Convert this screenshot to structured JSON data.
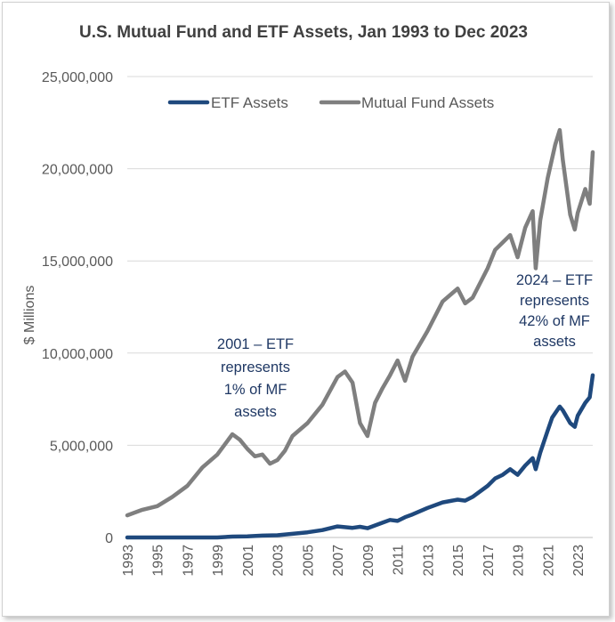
{
  "chart_data": {
    "type": "line",
    "title": "U.S. Mutual Fund and ETF Assets, Jan 1993 to Dec 2023",
    "xlabel": "",
    "ylabel": "$ Millions",
    "ylim": [
      0,
      25000000
    ],
    "xlim": [
      1993,
      2024
    ],
    "yticks": [
      "0",
      "5,000,000",
      "10,000,000",
      "15,000,000",
      "20,000,000",
      "25,000,000"
    ],
    "xticks": [
      "1993",
      "1995",
      "1997",
      "1999",
      "2001",
      "2003",
      "2005",
      "2007",
      "2009",
      "2011",
      "2013",
      "2015",
      "2017",
      "2019",
      "2021",
      "2023"
    ],
    "grid": "horizontal",
    "legend": "top",
    "series": [
      {
        "name": "ETF Assets",
        "color": "#1f497d",
        "x": [
          1993,
          1995,
          1997,
          1999,
          2000,
          2001,
          2002,
          2003,
          2004,
          2005,
          2006,
          2007,
          2008,
          2008.5,
          2009,
          2010,
          2010.5,
          2011,
          2011.5,
          2012,
          2013,
          2014,
          2015,
          2015.5,
          2016,
          2017,
          2017.5,
          2018,
          2018.5,
          2019,
          2019.5,
          2020,
          2020.2,
          2020.5,
          2021,
          2021.3,
          2021.8,
          2022,
          2022.5,
          2022.8,
          2023,
          2023.5,
          2023.8,
          2024
        ],
        "values": [
          0,
          0,
          0,
          0,
          50000,
          60000,
          100000,
          120000,
          200000,
          280000,
          400000,
          600000,
          520000,
          580000,
          500000,
          800000,
          950000,
          900000,
          1100000,
          1250000,
          1600000,
          1900000,
          2050000,
          2000000,
          2200000,
          2800000,
          3200000,
          3400000,
          3700000,
          3400000,
          3900000,
          4300000,
          3700000,
          4600000,
          5800000,
          6500000,
          7100000,
          6900000,
          6200000,
          6000000,
          6600000,
          7300000,
          7600000,
          8800000
        ]
      },
      {
        "name": "Mutual Fund Assets",
        "color": "#7f7f7f",
        "x": [
          1993,
          1994,
          1995,
          1996,
          1997,
          1998,
          1999,
          2000,
          2000.5,
          2001,
          2001.5,
          2002,
          2002.5,
          2003,
          2003.5,
          2004,
          2005,
          2006,
          2007,
          2007.5,
          2008,
          2008.5,
          2009,
          2009.5,
          2010,
          2010.5,
          2011,
          2011.5,
          2012,
          2013,
          2014,
          2015,
          2015.5,
          2016,
          2017,
          2017.5,
          2018,
          2018.5,
          2019,
          2019.5,
          2020,
          2020.2,
          2020.5,
          2021,
          2021.5,
          2021.8,
          2022,
          2022.5,
          2022.8,
          2023,
          2023.5,
          2023.8,
          2024
        ],
        "values": [
          1200000,
          1500000,
          1700000,
          2200000,
          2800000,
          3800000,
          4500000,
          5600000,
          5300000,
          4800000,
          4400000,
          4500000,
          4000000,
          4200000,
          4700000,
          5500000,
          6200000,
          7200000,
          8700000,
          9000000,
          8400000,
          6200000,
          5500000,
          7300000,
          8100000,
          8800000,
          9600000,
          8500000,
          9800000,
          11200000,
          12800000,
          13500000,
          12700000,
          13000000,
          14600000,
          15600000,
          16000000,
          16400000,
          15200000,
          16800000,
          17700000,
          14600000,
          17200000,
          19500000,
          21300000,
          22100000,
          20500000,
          17500000,
          16700000,
          17600000,
          18900000,
          18100000,
          20900000
        ]
      }
    ],
    "annotations": [
      {
        "lines": [
          "2001 – ETF",
          "represents",
          "1% of MF",
          "assets"
        ]
      },
      {
        "lines": [
          "2024 – ETF",
          "represents",
          "42% of MF",
          "assets"
        ]
      }
    ]
  }
}
